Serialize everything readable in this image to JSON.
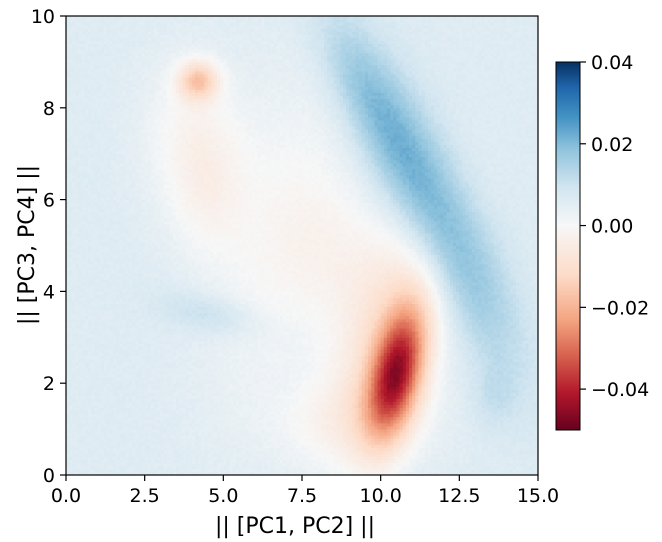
{
  "chart_data": {
    "type": "heatmap",
    "title": "",
    "xlabel": "|| [PC1, PC2] ||",
    "ylabel": "|| [PC3, PC4] ||",
    "xlim": [
      0,
      15
    ],
    "ylim": [
      0,
      10
    ],
    "x_ticks": [
      "0.0",
      "2.5",
      "5.0",
      "7.5",
      "10.0",
      "12.5",
      "15.0"
    ],
    "x_tick_values": [
      0,
      2.5,
      5,
      7.5,
      10,
      12.5,
      15
    ],
    "y_ticks": [
      "0",
      "2",
      "4",
      "6",
      "8",
      "10"
    ],
    "y_tick_values": [
      0,
      2,
      4,
      6,
      8,
      10
    ],
    "colormap": "RdBu",
    "colorbar": {
      "vmin": -0.05,
      "vmax": 0.04,
      "ticks": [
        "0.04",
        "0.02",
        "0.00",
        "−0.02",
        "−0.04"
      ],
      "tick_values": [
        0.04,
        0.02,
        0.0,
        -0.02,
        -0.04
      ]
    },
    "background_value": 0.006,
    "grid_resolution": 150,
    "features": [
      {
        "kind": "negative",
        "center": [
          4.2,
          8.6
        ],
        "sigma": [
          0.45,
          0.3
        ],
        "rotation_deg": 0,
        "value": -0.02
      },
      {
        "kind": "negative",
        "center": [
          4.0,
          7.5
        ],
        "sigma": [
          1.1,
          1.1
        ],
        "rotation_deg": 0,
        "value": -0.0065
      },
      {
        "kind": "negative",
        "center": [
          4.5,
          6.1
        ],
        "sigma": [
          0.9,
          1.0
        ],
        "rotation_deg": 0,
        "value": -0.006
      },
      {
        "kind": "negative",
        "center": [
          10.5,
          2.2
        ],
        "sigma": [
          0.55,
          1.05
        ],
        "rotation_deg": -22,
        "value": -0.04
      },
      {
        "kind": "negative",
        "center": [
          10.3,
          3.1
        ],
        "sigma": [
          1.1,
          2.0
        ],
        "rotation_deg": -28,
        "value": -0.014
      },
      {
        "kind": "negative",
        "center": [
          8.6,
          4.8
        ],
        "sigma": [
          1.2,
          1.1
        ],
        "rotation_deg": -30,
        "value": -0.005
      },
      {
        "kind": "positive",
        "center": [
          11.7,
          5.8
        ],
        "sigma": [
          0.8,
          2.6
        ],
        "rotation_deg": 37,
        "value": 0.018
      },
      {
        "kind": "positive",
        "center": [
          9.4,
          8.5
        ],
        "sigma": [
          0.6,
          1.4
        ],
        "rotation_deg": 40,
        "value": 0.007
      },
      {
        "kind": "positive",
        "center": [
          4.6,
          3.5
        ],
        "sigma": [
          1.1,
          0.32
        ],
        "rotation_deg": -8,
        "value": 0.006
      },
      {
        "kind": "positive",
        "center": [
          13.6,
          1.7
        ],
        "sigma": [
          0.5,
          0.5
        ],
        "rotation_deg": 0,
        "value": 0.004
      }
    ],
    "neutral_regions": [
      {
        "center": [
          6.8,
          5.2
        ],
        "sigma": [
          1.4,
          2.6
        ],
        "rotation_deg": -20,
        "value": 0.0
      },
      {
        "center": [
          8.8,
          1.2
        ],
        "sigma": [
          1.8,
          0.7
        ],
        "rotation_deg": 0,
        "value": 0.0
      }
    ]
  }
}
